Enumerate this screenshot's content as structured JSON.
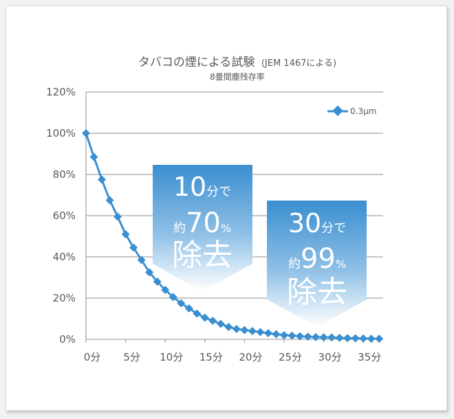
{
  "chart_data": {
    "type": "line",
    "title": "タバコの煙による試験",
    "title_note": "(JEM 1467による)",
    "subtitle": "8畳間塵残存率",
    "xlabel": "",
    "ylabel": "",
    "x_unit": "分",
    "x_ticks": [
      0,
      5,
      10,
      15,
      20,
      25,
      30,
      35
    ],
    "x_tick_labels": [
      "0分",
      "5分",
      "10分",
      "15分",
      "20分",
      "25分",
      "30分",
      "35分"
    ],
    "xlim": [
      0,
      37.5
    ],
    "ylim": [
      0,
      120
    ],
    "y_ticks": [
      0,
      20,
      40,
      60,
      80,
      100,
      120
    ],
    "y_tick_labels": [
      "0%",
      "20%",
      "40%",
      "60%",
      "80%",
      "100%",
      "120%"
    ],
    "grid": true,
    "legend_position": "top-right",
    "series": [
      {
        "name": "0.3μm",
        "color": "#3a8fd0",
        "marker": "diamond",
        "x": [
          0,
          1,
          2,
          3,
          4,
          5,
          6,
          7,
          8,
          9,
          10,
          11,
          12,
          13,
          14,
          15,
          16,
          17,
          18,
          19,
          20,
          21,
          22,
          23,
          24,
          25,
          26,
          27,
          28,
          29,
          30,
          31,
          32,
          33,
          34,
          35,
          36,
          37
        ],
        "values": [
          100,
          88.5,
          77.5,
          67.5,
          59.5,
          51,
          44.5,
          38.5,
          32.5,
          28,
          24,
          20.5,
          17.5,
          15,
          12.5,
          10.5,
          9,
          7.5,
          6,
          5,
          4.5,
          4,
          3.5,
          3,
          2.5,
          2,
          1.8,
          1.5,
          1.3,
          1.1,
          1,
          0.9,
          0.7,
          0.6,
          0.5,
          0.4,
          0.3,
          0.3
        ]
      }
    ],
    "annotations": [
      {
        "line1_number": "10",
        "line1_suffix": "分で",
        "line2_prefix": "約",
        "line2_number": "70",
        "line2_suffix": "%",
        "line3": "除去"
      },
      {
        "line1_number": "30",
        "line1_suffix": "分で",
        "line2_prefix": "約",
        "line2_number": "99",
        "line2_suffix": "%",
        "line3": "除去"
      }
    ]
  }
}
